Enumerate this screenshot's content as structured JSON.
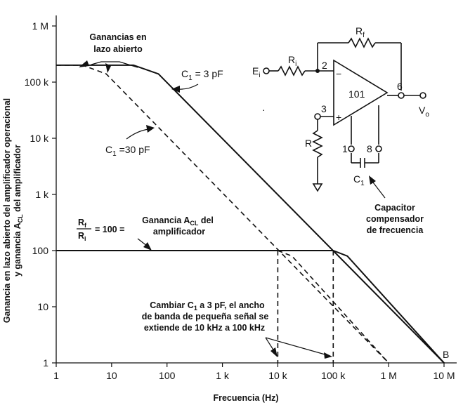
{
  "chart_data": {
    "type": "line",
    "xscale": "log",
    "yscale": "log",
    "xlim": [
      1,
      10000000
    ],
    "ylim": [
      1,
      1000000
    ],
    "grid": false,
    "xlabel": "Frecuencia (Hz)",
    "ylabel_line1": "Ganancia en lazo abierto del amplificador operacional",
    "ylabel_line2": "y ganancia A",
    "ylabel_sub": "CL",
    "ylabel_tail": " del amplificador",
    "xticks": [
      {
        "value": 1,
        "label": "1"
      },
      {
        "value": 10,
        "label": "10"
      },
      {
        "value": 100,
        "label": "100"
      },
      {
        "value": 1000,
        "label": "1 k"
      },
      {
        "value": 10000,
        "label": "10 k"
      },
      {
        "value": 100000,
        "label": "100 k"
      },
      {
        "value": 1000000,
        "label": "1 M"
      },
      {
        "value": 10000000,
        "label": "10 M"
      }
    ],
    "yticks": [
      {
        "value": 1,
        "label": "1"
      },
      {
        "value": 10,
        "label": "10"
      },
      {
        "value": 100,
        "label": "100"
      },
      {
        "value": 1000,
        "label": "1 k"
      },
      {
        "value": 10000,
        "label": "10 k"
      },
      {
        "value": 100000,
        "label": "100 k"
      },
      {
        "value": 1000000,
        "label": "1 M"
      }
    ],
    "series": [
      {
        "style": "solid",
        "x": [
          1,
          25,
          70,
          10000000
        ],
        "y": [
          200000,
          200000,
          140000,
          1
        ]
      },
      {
        "style": "dashed",
        "x": [
          1,
          3,
          8,
          1000000
        ],
        "y": [
          200000,
          200000,
          140000,
          1
        ]
      },
      {
        "style": "solid",
        "x": [
          1,
          100000,
          180000,
          10000000
        ],
        "y": [
          100,
          100,
          80,
          1
        ]
      },
      {
        "style": "dashed",
        "x": [
          10000,
          18000,
          1000000
        ],
        "y": [
          100,
          80,
          1
        ]
      },
      {
        "style": "dashed",
        "x": [
          10000,
          10000
        ],
        "y": [
          100,
          1
        ]
      },
      {
        "style": "dashed",
        "x": [
          100000,
          100000
        ],
        "y": [
          100,
          1
        ]
      }
    ],
    "annotations": {
      "open_loop_line1": "Ganancias en",
      "open_loop_line2": "lazo abierto",
      "c1_3pf_a": "C",
      "c1_3pf_sub": "1",
      "c1_3pf_b": " = 3 pF",
      "c1_30pf_a": "C",
      "c1_30pf_sub": "1",
      "c1_30pf_b": " =30 pF",
      "ratio_num": "R",
      "ratio_num_sub": "f",
      "ratio_den": "R",
      "ratio_den_sub": "i",
      "ratio_eq": "= 100 =",
      "acl_line1_a": "Ganancia A",
      "acl_line1_sub": "CL",
      "acl_line1_b": " del",
      "acl_line2": "amplificador",
      "change_line1_a": "Cambiar C",
      "change_line1_sub": "1",
      "change_line1_b": " a 3 pF, el ancho",
      "change_line2": "de banda de pequeña señal se",
      "change_line3": "extiende de 10 kHz a 100 kHz",
      "point_b": "B"
    },
    "schematic": {
      "rf_a": "R",
      "rf_sub": "f",
      "ri_a": "R",
      "ri_sub": "i",
      "ei_a": "E",
      "ei_sub": "i",
      "pin2": "2",
      "pin3": "3",
      "pin6": "6",
      "pin1": "1",
      "pin8": "8",
      "opamp": "101",
      "minus": "−",
      "plus": "+",
      "vo_a": "V",
      "vo_sub": "o",
      "r": "R",
      "c1_a": "C",
      "c1_sub": "1",
      "cap_line1": "Capacitor",
      "cap_line2": "compensador",
      "cap_line3": "de frecuencia"
    }
  }
}
